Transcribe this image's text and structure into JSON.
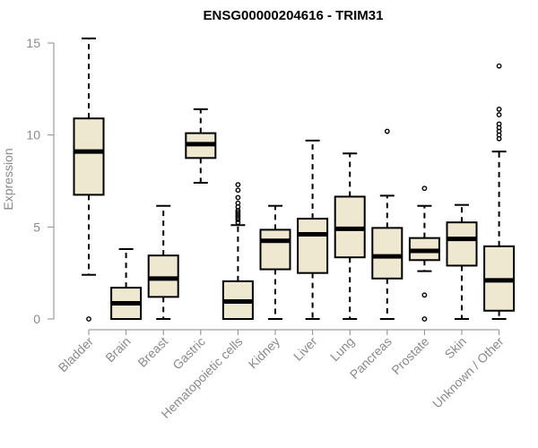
{
  "chart_data": {
    "type": "boxplot",
    "title": "ENSG00000204616 - TRIM31",
    "xlabel": "",
    "ylabel": "Expression",
    "ylim": [
      0,
      15.5
    ],
    "yticks": [
      0,
      5,
      10,
      15
    ],
    "colors": {
      "box_fill": "#efe8d0",
      "box_stroke": "#000000",
      "axis": "#8a8a8a"
    },
    "categories": [
      "Bladder",
      "Brain",
      "Breast",
      "Gastric",
      "Hematopoietic cells",
      "Kidney",
      "Liver",
      "Lung",
      "Pancreas",
      "Prostate",
      "Skin",
      "Unknown / Other"
    ],
    "boxes": [
      {
        "q1": 6.75,
        "median": 9.1,
        "q3": 10.9,
        "whisker_low": 2.4,
        "whisker_high": 15.25,
        "outliers": [
          0
        ]
      },
      {
        "q1": 0.0,
        "median": 0.85,
        "q3": 1.7,
        "whisker_low": 0.0,
        "whisker_high": 3.8,
        "outliers": []
      },
      {
        "q1": 1.2,
        "median": 2.2,
        "q3": 3.45,
        "whisker_low": 0.0,
        "whisker_high": 6.15,
        "outliers": []
      },
      {
        "q1": 8.75,
        "median": 9.5,
        "q3": 10.1,
        "whisker_low": 7.4,
        "whisker_high": 11.4,
        "outliers": []
      },
      {
        "q1": 0.0,
        "median": 0.95,
        "q3": 2.05,
        "whisker_low": 0.0,
        "whisker_high": 5.1,
        "outliers": [
          5.25,
          5.4,
          5.5,
          5.6,
          5.7,
          5.8,
          5.9,
          6.1,
          6.3,
          6.6,
          7.0,
          7.3
        ]
      },
      {
        "q1": 2.7,
        "median": 4.25,
        "q3": 4.85,
        "whisker_low": 0.0,
        "whisker_high": 6.15,
        "outliers": []
      },
      {
        "q1": 2.5,
        "median": 4.6,
        "q3": 5.45,
        "whisker_low": 0.0,
        "whisker_high": 9.7,
        "outliers": []
      },
      {
        "q1": 3.35,
        "median": 4.9,
        "q3": 6.65,
        "whisker_low": 0.0,
        "whisker_high": 9.0,
        "outliers": []
      },
      {
        "q1": 2.2,
        "median": 3.4,
        "q3": 4.95,
        "whisker_low": 0.0,
        "whisker_high": 6.7,
        "outliers": [
          10.2
        ]
      },
      {
        "q1": 3.2,
        "median": 3.7,
        "q3": 4.4,
        "whisker_low": 2.6,
        "whisker_high": 6.15,
        "outliers": [
          7.1,
          1.3,
          0
        ]
      },
      {
        "q1": 2.9,
        "median": 4.35,
        "q3": 5.25,
        "whisker_low": 0.0,
        "whisker_high": 6.2,
        "outliers": []
      },
      {
        "q1": 0.45,
        "median": 2.1,
        "q3": 3.95,
        "whisker_low": 0.0,
        "whisker_high": 9.1,
        "outliers": [
          9.8,
          10.0,
          10.2,
          10.4,
          10.6,
          11.1,
          11.4,
          13.75
        ]
      }
    ]
  }
}
